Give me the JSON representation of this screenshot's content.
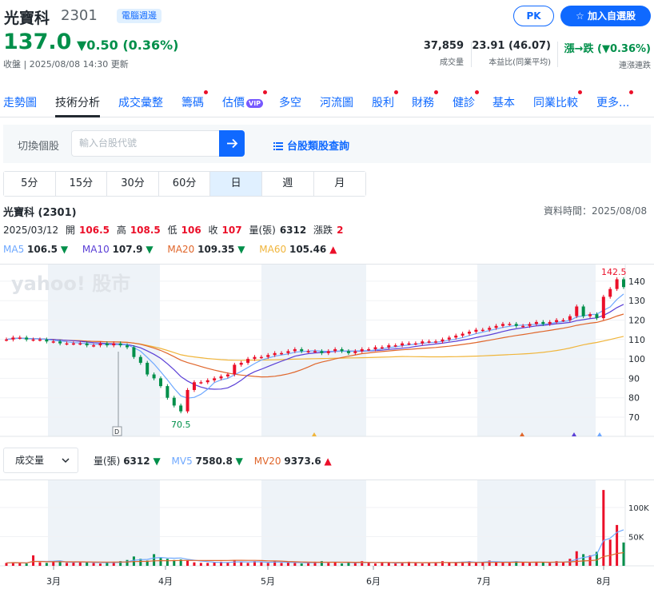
{
  "header": {
    "name": "光寶科",
    "code": "2301",
    "badge": "電腦週邊",
    "price": "137.0",
    "change": "▼0.50 (0.36%)",
    "updated": "收盤 | 2025/08/08 14:30 更新",
    "pk_label": "PK",
    "fav_label": "☆  加入自選股"
  },
  "stats": [
    {
      "value": "37,859",
      "label": "成交量"
    },
    {
      "value": "23.91 (46.07)",
      "label": "本益比(同業平均)"
    },
    {
      "value": "漲→跌 (▼0.36%)",
      "label": "連漲連跌"
    }
  ],
  "tabs": [
    {
      "label": "走勢圖",
      "active": false,
      "dot": false
    },
    {
      "label": "技術分析",
      "active": true,
      "dot": false
    },
    {
      "label": "成交彙整",
      "active": false,
      "dot": false
    },
    {
      "label": "籌碼",
      "active": false,
      "dot": true
    },
    {
      "label": "估價",
      "active": false,
      "dot": true,
      "vip": "VIP"
    },
    {
      "label": "多空",
      "active": false,
      "dot": false
    },
    {
      "label": "河流圖",
      "active": false,
      "dot": false
    },
    {
      "label": "股利",
      "active": false,
      "dot": true
    },
    {
      "label": "財務",
      "active": false,
      "dot": true
    },
    {
      "label": "健診",
      "active": false,
      "dot": true
    },
    {
      "label": "基本",
      "active": false,
      "dot": false
    },
    {
      "label": "同業比較",
      "active": false,
      "dot": true
    },
    {
      "label": "更多...",
      "active": false,
      "dot": true
    }
  ],
  "search": {
    "switch_label": "切換個股",
    "placeholder": "輸入台股代號",
    "category_link": "台股類股查詢"
  },
  "periods": [
    {
      "label": "5分",
      "active": false
    },
    {
      "label": "15分",
      "active": false
    },
    {
      "label": "30分",
      "active": false
    },
    {
      "label": "60分",
      "active": false
    },
    {
      "label": "日",
      "active": true
    },
    {
      "label": "週",
      "active": false
    },
    {
      "label": "月",
      "active": false
    }
  ],
  "chart_info": {
    "title": "光寶科 (2301)",
    "data_time": "資料時間：2025/08/08",
    "date": "2025/03/12",
    "open_label": "開",
    "open": "106.5",
    "high_label": "高",
    "high": "108.5",
    "low_label": "低",
    "low": "106",
    "close_label": "收",
    "close": "107",
    "vol_label": "量(張)",
    "vol": "6312",
    "chg_label": "漲跌",
    "chg": "2"
  },
  "ma": [
    {
      "name": "MA5",
      "value": "106.5",
      "arrow": "▼",
      "color": "#6ea8ff"
    },
    {
      "name": "MA10",
      "value": "107.9",
      "arrow": "▼",
      "color": "#5a3fd6"
    },
    {
      "name": "MA20",
      "value": "109.35",
      "arrow": "▼",
      "color": "#e0662b"
    },
    {
      "name": "MA60",
      "value": "105.46",
      "arrow": "▲",
      "color": "#f0b53b"
    }
  ],
  "volume": {
    "select_label": "成交量",
    "items": [
      {
        "name": "量(張)",
        "value": "6312",
        "arrow": "▼",
        "color": "#232a31"
      },
      {
        "name": "MV5",
        "value": "7580.8",
        "arrow": "▼",
        "color": "#6ea8ff"
      },
      {
        "name": "MV20",
        "value": "9373.6",
        "arrow": "▲",
        "color": "#e0662b"
      }
    ]
  },
  "chart_data": {
    "type": "candlestick",
    "watermark": "yahoo! 股市",
    "price_ticks": [
      70,
      80,
      90,
      100,
      110,
      120,
      130,
      140
    ],
    "volume_ticks": [
      "50K",
      "100K"
    ],
    "volume_tick_values": [
      50000,
      100000
    ],
    "month_labels": [
      "3月",
      "4月",
      "5月",
      "6月",
      "7月",
      "8月"
    ],
    "max_label": "142.5",
    "min_label": "70.5",
    "d_marker": "D",
    "closes": [
      110,
      111,
      111,
      110,
      110,
      110,
      109,
      109,
      108,
      108,
      108,
      108,
      107,
      107,
      108,
      107,
      108,
      107,
      106,
      101,
      98,
      92,
      90,
      86,
      80,
      76,
      73,
      84,
      88,
      88,
      89,
      90,
      91,
      92,
      97,
      98,
      100,
      101,
      101,
      102,
      103,
      103,
      104,
      105,
      104,
      104,
      104,
      103,
      104,
      105,
      104,
      103,
      104,
      105,
      105,
      106,
      106,
      107,
      107,
      108,
      108,
      108,
      109,
      109,
      109,
      110,
      111,
      112,
      113,
      114,
      115,
      115,
      116,
      117,
      118,
      118,
      117,
      117,
      118,
      119,
      118,
      119,
      120,
      120,
      122,
      127,
      122,
      123,
      121,
      132,
      136,
      141,
      137
    ],
    "volumes": [
      5,
      6,
      5,
      4,
      18,
      6,
      5,
      7,
      8,
      5,
      6,
      7,
      6,
      5,
      4,
      6,
      7,
      8,
      10,
      16,
      12,
      9,
      20,
      14,
      12,
      10,
      11,
      9,
      6,
      5,
      5,
      6,
      7,
      6,
      9,
      6,
      5,
      8,
      6,
      5,
      8,
      5,
      6,
      5,
      4,
      6,
      7,
      8,
      5,
      6,
      4,
      6,
      5,
      8,
      5,
      4,
      6,
      5,
      4,
      6,
      7,
      5,
      4,
      5,
      6,
      8,
      5,
      6,
      7,
      8,
      5,
      6,
      9,
      7,
      6,
      5,
      8,
      6,
      5,
      7,
      6,
      5,
      8,
      6,
      12,
      25,
      20,
      18,
      24,
      130,
      45,
      70,
      40
    ]
  }
}
